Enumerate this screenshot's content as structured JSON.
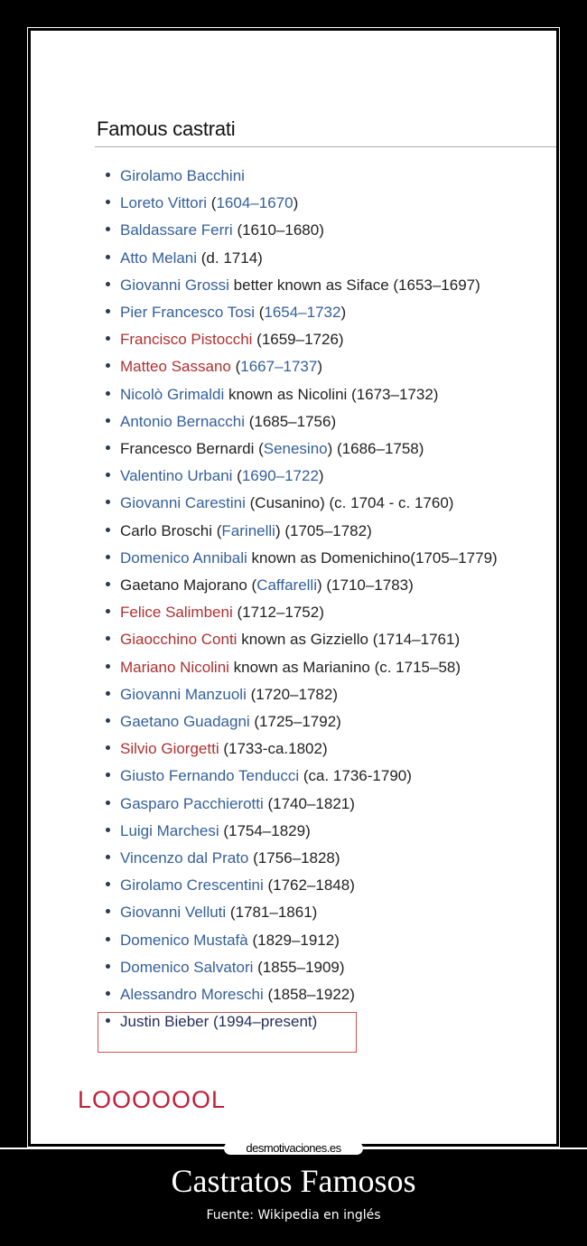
{
  "heading": "Famous castrati",
  "colors": {
    "link": "#35609a",
    "redlink": "#b03030",
    "text": "#222222",
    "highlight_box": "#d05050",
    "lol": "#c0203a"
  },
  "items": [
    [
      [
        "link",
        "Girolamo Bacchini"
      ]
    ],
    [
      [
        "link",
        "Loreto Vittori"
      ],
      [
        "txt",
        " ("
      ],
      [
        "link",
        "1604–1670"
      ],
      [
        "txt",
        ")"
      ]
    ],
    [
      [
        "link",
        "Baldassare Ferri"
      ],
      [
        "txt",
        " (1610–1680)"
      ]
    ],
    [
      [
        "link",
        "Atto Melani"
      ],
      [
        "txt",
        " (d. 1714)"
      ]
    ],
    [
      [
        "link",
        "Giovanni Grossi"
      ],
      [
        "txt",
        " better known as Siface (1653–1697)"
      ]
    ],
    [
      [
        "link",
        "Pier Francesco Tosi"
      ],
      [
        "txt",
        " ("
      ],
      [
        "link",
        "1654–1732"
      ],
      [
        "txt",
        ")"
      ]
    ],
    [
      [
        "red",
        "Francisco Pistocchi"
      ],
      [
        "txt",
        " (1659–1726)"
      ]
    ],
    [
      [
        "red",
        "Matteo Sassano"
      ],
      [
        "txt",
        " ("
      ],
      [
        "link",
        "1667–1737"
      ],
      [
        "txt",
        ")"
      ]
    ],
    [
      [
        "link",
        "Nicolò Grimaldi"
      ],
      [
        "txt",
        " known as Nicolini (1673–1732)"
      ]
    ],
    [
      [
        "link",
        "Antonio Bernacchi"
      ],
      [
        "txt",
        " (1685–1756)"
      ]
    ],
    [
      [
        "txt",
        "Francesco Bernardi ("
      ],
      [
        "link",
        "Senesino"
      ],
      [
        "txt",
        ") (1686–1758)"
      ]
    ],
    [
      [
        "link",
        "Valentino Urbani"
      ],
      [
        "txt",
        " ("
      ],
      [
        "link",
        "1690–1722"
      ],
      [
        "txt",
        ")"
      ]
    ],
    [
      [
        "link",
        "Giovanni Carestini"
      ],
      [
        "txt",
        " (Cusanino) (c. 1704 - c. 1760)"
      ]
    ],
    [
      [
        "txt",
        "Carlo Broschi ("
      ],
      [
        "link",
        "Farinelli"
      ],
      [
        "txt",
        ") (1705–1782)"
      ]
    ],
    [
      [
        "link",
        "Domenico Annibali"
      ],
      [
        "txt",
        " known as Domenichino(1705–1779)"
      ]
    ],
    [
      [
        "txt",
        "Gaetano Majorano ("
      ],
      [
        "link",
        "Caffarelli"
      ],
      [
        "txt",
        ") (1710–1783)"
      ]
    ],
    [
      [
        "red",
        "Felice Salimbeni"
      ],
      [
        "txt",
        " (1712–1752)"
      ]
    ],
    [
      [
        "red",
        "Giaocchino Conti"
      ],
      [
        "txt",
        " known as Gizziello (1714–1761)"
      ]
    ],
    [
      [
        "red",
        "Mariano Nicolini"
      ],
      [
        "txt",
        " known as Marianino (c. 1715–58)"
      ]
    ],
    [
      [
        "link",
        "Giovanni Manzuoli"
      ],
      [
        "txt",
        " (1720–1782)"
      ]
    ],
    [
      [
        "link",
        "Gaetano Guadagni"
      ],
      [
        "txt",
        " (1725–1792)"
      ]
    ],
    [
      [
        "red",
        "Silvio Giorgetti"
      ],
      [
        "txt",
        " (1733-ca.1802)"
      ]
    ],
    [
      [
        "link",
        "Giusto Fernando Tenducci"
      ],
      [
        "txt",
        " (ca. 1736-1790)"
      ]
    ],
    [
      [
        "link",
        "Gasparo Pacchierotti"
      ],
      [
        "txt",
        " (1740–1821)"
      ]
    ],
    [
      [
        "link",
        "Luigi Marchesi"
      ],
      [
        "txt",
        " (1754–1829)"
      ]
    ],
    [
      [
        "link",
        "Vincenzo dal Prato"
      ],
      [
        "txt",
        " (1756–1828)"
      ]
    ],
    [
      [
        "link",
        "Girolamo Crescentini"
      ],
      [
        "txt",
        " (1762–1848)"
      ]
    ],
    [
      [
        "link",
        "Giovanni Velluti"
      ],
      [
        "txt",
        " (1781–1861)"
      ]
    ],
    [
      [
        "link",
        "Domenico Mustafà"
      ],
      [
        "txt",
        " (1829–1912)"
      ]
    ],
    [
      [
        "link",
        "Domenico Salvatori"
      ],
      [
        "txt",
        " (1855–1909)"
      ]
    ],
    [
      [
        "link",
        "Alessandro Moreschi"
      ],
      [
        "txt",
        " (1858–1922)"
      ]
    ],
    [
      [
        "dark",
        "Justin Bieber (1994–present)"
      ]
    ]
  ],
  "caption": "LOOOOOOL",
  "watermark": "desmotivaciones.es",
  "title": "Castratos Famosos",
  "subtitle": "Fuente: Wikipedia en inglés"
}
